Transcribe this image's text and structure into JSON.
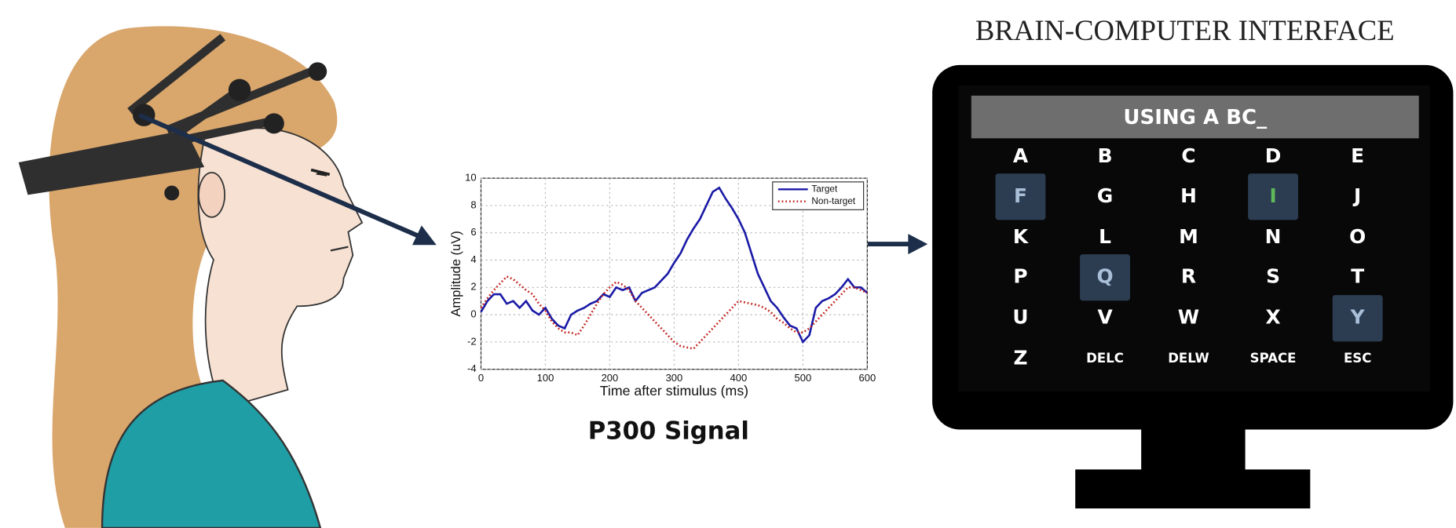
{
  "title": "BRAIN-COMPUTER INTERFACE",
  "caption": "P300 Signal",
  "screen": {
    "text": "USING A BC_",
    "keys": [
      [
        "A",
        "B",
        "C",
        "D",
        "E"
      ],
      [
        "F",
        "G",
        "H",
        "I",
        "J"
      ],
      [
        "K",
        "L",
        "M",
        "N",
        "O"
      ],
      [
        "P",
        "Q",
        "R",
        "S",
        "T"
      ],
      [
        "U",
        "V",
        "W",
        "X",
        "Y"
      ],
      [
        "Z",
        "DELC",
        "DELW",
        "SPACE",
        "ESC"
      ]
    ]
  },
  "chart_data": {
    "type": "line",
    "x_label": "Time after stimulus (ms)",
    "y_label": "Amplitude (uV)",
    "x": [
      0,
      10,
      20,
      30,
      40,
      50,
      60,
      70,
      80,
      90,
      100,
      110,
      120,
      130,
      140,
      150,
      160,
      170,
      180,
      190,
      200,
      210,
      220,
      230,
      240,
      250,
      260,
      270,
      280,
      290,
      300,
      310,
      320,
      330,
      340,
      350,
      360,
      370,
      380,
      390,
      400,
      410,
      420,
      430,
      440,
      450,
      460,
      470,
      480,
      490,
      500,
      510,
      520,
      530,
      540,
      550,
      560,
      570,
      580,
      590,
      600
    ],
    "series": [
      {
        "name": "Target",
        "color": "#1a1aa6",
        "style": "solid",
        "values": [
          0.2,
          1.0,
          1.5,
          1.5,
          0.8,
          1.0,
          0.5,
          1.0,
          0.3,
          0.0,
          0.5,
          -0.3,
          -0.8,
          -1.0,
          0.0,
          0.3,
          0.5,
          0.8,
          1.0,
          1.5,
          1.3,
          2.0,
          1.8,
          2.0,
          1.0,
          1.6,
          1.8,
          2.0,
          2.5,
          3.0,
          3.8,
          4.5,
          5.5,
          6.3,
          7.0,
          8.0,
          9.0,
          9.3,
          8.5,
          7.8,
          7.0,
          6.0,
          4.5,
          3.0,
          2.0,
          1.0,
          0.5,
          -0.2,
          -0.8,
          -1.0,
          -2.0,
          -1.5,
          0.5,
          1.0,
          1.2,
          1.5,
          2.0,
          2.6,
          2.0,
          2.0,
          1.6
        ]
      },
      {
        "name": "Non-target",
        "color": "#c0201c",
        "style": "dotted",
        "values": [
          0.5,
          1.2,
          1.8,
          2.3,
          2.8,
          2.6,
          2.2,
          1.8,
          1.5,
          0.8,
          0.3,
          -0.5,
          -1.0,
          -1.3,
          -1.3,
          -1.5,
          -0.8,
          0.0,
          0.8,
          1.5,
          2.0,
          2.4,
          2.2,
          1.8,
          1.0,
          0.5,
          0.0,
          -0.5,
          -1.0,
          -1.5,
          -2.0,
          -2.3,
          -2.4,
          -2.5,
          -2.0,
          -1.5,
          -1.0,
          -0.5,
          0.0,
          0.5,
          1.0,
          0.9,
          0.8,
          0.7,
          0.5,
          0.2,
          -0.3,
          -0.6,
          -1.0,
          -1.3,
          -1.3,
          -1.0,
          -0.5,
          0.0,
          0.5,
          1.0,
          1.5,
          2.0,
          2.0,
          1.8,
          1.6
        ]
      }
    ],
    "xlim": [
      0,
      600
    ],
    "ylim": [
      -4,
      10
    ],
    "xticks": [
      0,
      100,
      200,
      300,
      400,
      500,
      600
    ],
    "yticks": [
      -4,
      -2,
      0,
      2,
      4,
      6,
      8,
      10
    ],
    "grid": true,
    "legend": "top-right"
  }
}
